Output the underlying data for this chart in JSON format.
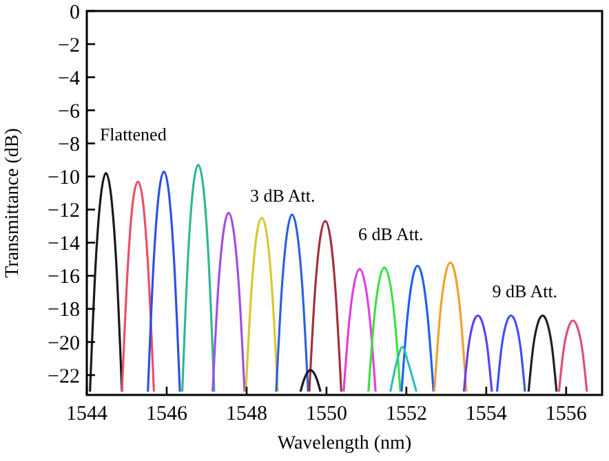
{
  "chart_data": {
    "type": "line",
    "xlabel": "Wavelength (nm)",
    "ylabel": "Transmittance (dB)",
    "xlim": [
      1544,
      1556.9
    ],
    "xticks": [
      1544,
      1546,
      1548,
      1550,
      1552,
      1554,
      1556
    ],
    "ylim": [
      -23.2,
      0
    ],
    "yticks": [
      0,
      -2,
      -4,
      -6,
      -8,
      -10,
      -12,
      -14,
      -16,
      -18,
      -20,
      -22
    ],
    "grid": false,
    "line_style": "solid",
    "annotations": [
      "Flattened",
      "3 dB Att.",
      "6 dB Att.",
      "9 dB Att."
    ],
    "series": [
      {
        "color": "#1a1a1a",
        "x": [
          1544.08,
          1544.23,
          1544.36,
          1544.48,
          1544.6,
          1544.73,
          1544.88
        ],
        "values": [
          -23,
          -14.9,
          -11.0,
          -9.8,
          -11.0,
          -14.9,
          -23
        ]
      },
      {
        "color": "#e8506a",
        "x": [
          1544.88,
          1545.03,
          1545.16,
          1545.28,
          1545.4,
          1545.53,
          1545.68
        ],
        "values": [
          -23,
          -15.3,
          -11.4,
          -10.3,
          -11.4,
          -15.3,
          -23
        ]
      },
      {
        "color": "#3050e0",
        "x": [
          1545.53,
          1545.68,
          1545.81,
          1545.93,
          1546.05,
          1546.18,
          1546.33
        ],
        "values": [
          -23,
          -14.9,
          -10.9,
          -9.7,
          -10.9,
          -14.9,
          -23
        ]
      },
      {
        "color": "#30b890",
        "x": [
          1546.39,
          1546.54,
          1546.67,
          1546.79,
          1546.91,
          1547.04,
          1547.19
        ],
        "values": [
          -23,
          -14.6,
          -10.5,
          -9.3,
          -10.5,
          -14.6,
          -23
        ]
      },
      {
        "color": "#a050e0",
        "x": [
          1547.15,
          1547.3,
          1547.43,
          1547.55,
          1547.67,
          1547.8,
          1547.95
        ],
        "values": [
          -23,
          -16.4,
          -13.2,
          -12.2,
          -13.2,
          -16.4,
          -23
        ]
      },
      {
        "color": "#d8c830",
        "x": [
          1547.98,
          1548.13,
          1548.26,
          1548.38,
          1548.5,
          1548.63,
          1548.78
        ],
        "values": [
          -23,
          -16.6,
          -13.4,
          -12.5,
          -13.4,
          -16.6,
          -23
        ]
      },
      {
        "color": "#3060e0",
        "x": [
          1548.74,
          1548.89,
          1549.02,
          1549.14,
          1549.26,
          1549.39,
          1549.54
        ],
        "values": [
          -23,
          -16.5,
          -13.3,
          -12.3,
          -13.3,
          -16.5,
          -23
        ]
      },
      {
        "color": "#a03040",
        "x": [
          1549.57,
          1549.72,
          1549.85,
          1549.97,
          1550.09,
          1550.22,
          1550.37
        ],
        "values": [
          -23,
          -16.7,
          -13.6,
          -12.7,
          -13.6,
          -16.7,
          -23
        ]
      },
      {
        "color": "#e040e0",
        "x": [
          1550.43,
          1550.58,
          1550.71,
          1550.83,
          1550.95,
          1551.08,
          1551.23
        ],
        "values": [
          -23,
          -18.5,
          -16.3,
          -15.6,
          -16.3,
          -18.5,
          -23
        ]
      },
      {
        "color": "#40e040",
        "x": [
          1551.05,
          1551.2,
          1551.33,
          1551.45,
          1551.57,
          1551.7,
          1551.85
        ],
        "values": [
          -23,
          -18.4,
          -16.2,
          -15.5,
          -16.2,
          -18.4,
          -23
        ]
      },
      {
        "color": "#2060f0",
        "x": [
          1551.88,
          1552.03,
          1552.16,
          1552.28,
          1552.4,
          1552.53,
          1552.68
        ],
        "values": [
          -23,
          -18.4,
          -16.1,
          -15.4,
          -16.1,
          -18.4,
          -23
        ]
      },
      {
        "color": "#f0a030",
        "x": [
          1552.7,
          1552.85,
          1552.98,
          1553.1,
          1553.22,
          1553.35,
          1553.5
        ],
        "values": [
          -23,
          -18.2,
          -15.9,
          -15.2,
          -15.9,
          -18.2,
          -23
        ]
      },
      {
        "color": "#6040f0",
        "x": [
          1553.44,
          1553.56,
          1553.68,
          1553.79,
          1553.9,
          1554.02,
          1554.14
        ],
        "values": [
          -23,
          -20.2,
          -18.8,
          -18.4,
          -18.8,
          -20.2,
          -23
        ]
      },
      {
        "color": "#4050f0",
        "x": [
          1554.27,
          1554.39,
          1554.51,
          1554.62,
          1554.73,
          1554.85,
          1554.97
        ],
        "values": [
          -23,
          -20.2,
          -18.8,
          -18.4,
          -18.8,
          -20.2,
          -23
        ]
      },
      {
        "color": "#202020",
        "x": [
          1555.06,
          1555.18,
          1555.3,
          1555.41,
          1555.52,
          1555.64,
          1555.76
        ],
        "values": [
          -23,
          -20.2,
          -18.8,
          -18.4,
          -18.8,
          -20.2,
          -23
        ]
      },
      {
        "color": "#e05070",
        "x": [
          1555.82,
          1555.94,
          1556.06,
          1556.17,
          1556.28,
          1556.4,
          1556.52
        ],
        "values": [
          -23,
          -20.4,
          -19.1,
          -18.7,
          -19.1,
          -20.4,
          -23
        ]
      },
      {
        "color": "#1a1a1a",
        "x": [
          1549.35,
          1549.45,
          1549.6,
          1549.75,
          1549.85
        ],
        "values": [
          -23,
          -22.2,
          -21.7,
          -22.2,
          -23
        ]
      },
      {
        "color": "#30c0b0",
        "x": [
          1551.6,
          1551.75,
          1551.9,
          1552.05,
          1552.25
        ],
        "values": [
          -23,
          -21.3,
          -20.3,
          -21.3,
          -23
        ]
      }
    ]
  }
}
